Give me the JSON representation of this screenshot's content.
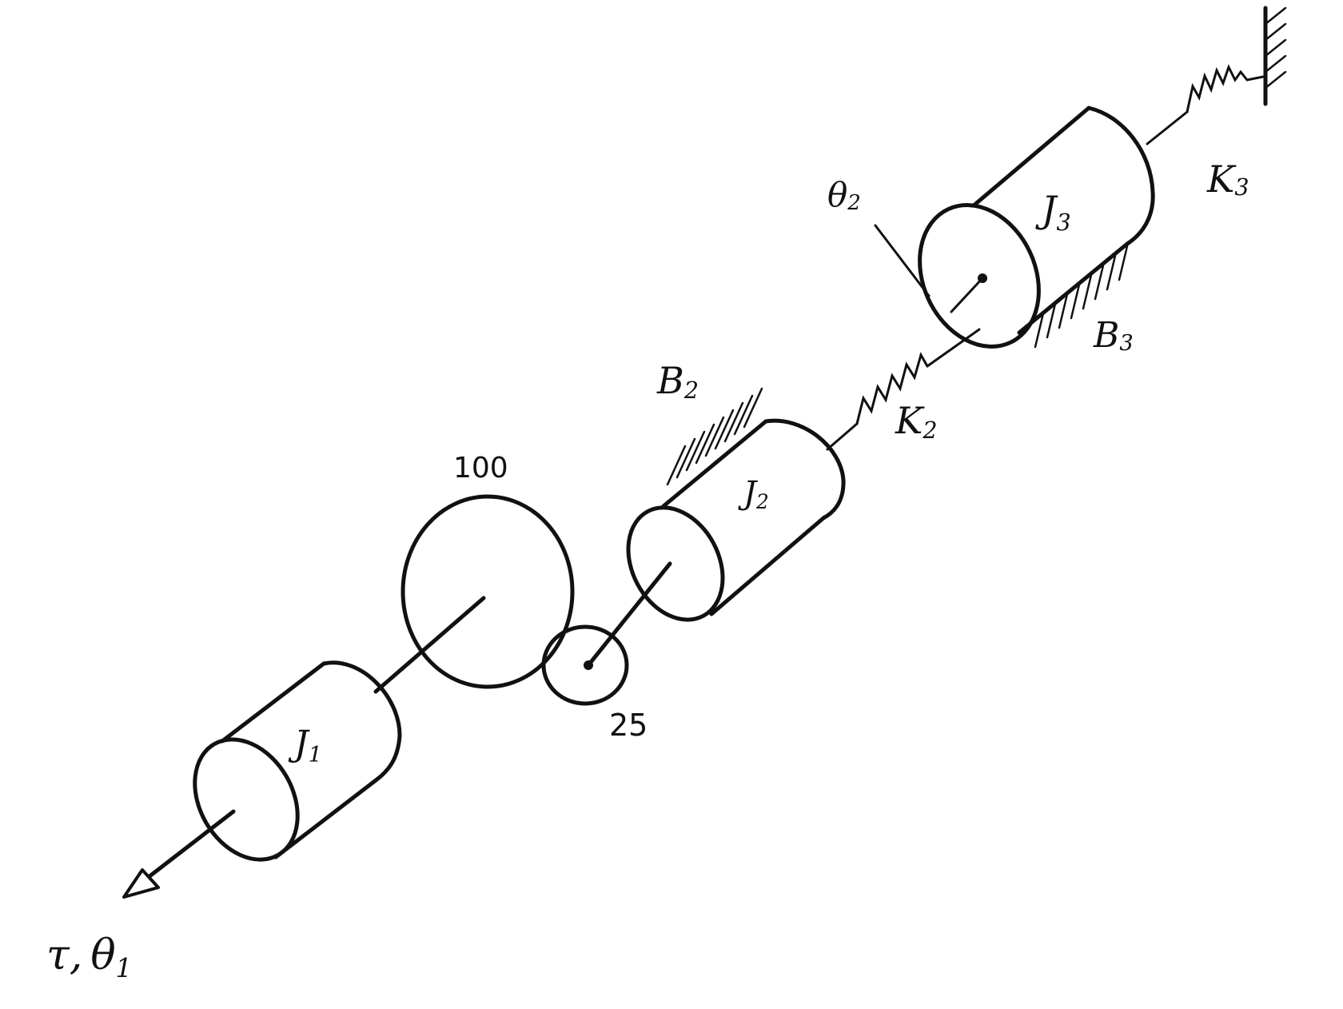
{
  "diagram": {
    "inertias": {
      "j1": "J",
      "j1_sub": "1",
      "j2": "J",
      "j2_sub": "2",
      "j3": "J",
      "j3_sub": "3"
    },
    "gears": {
      "large_teeth": "100",
      "small_teeth": "25"
    },
    "springs": {
      "k2": "K",
      "k2_sub": "2",
      "k3": "K",
      "k3_sub": "3"
    },
    "dampers": {
      "b2": "B",
      "b2_sub": "2",
      "b3": "B",
      "b3_sub": "3"
    },
    "input": {
      "torque": "τ",
      "separator": ",",
      "theta": "θ",
      "theta_sub": "1"
    },
    "theta2": {
      "symbol": "θ",
      "sub": "2"
    }
  },
  "colors": {
    "ink": "#111111",
    "paper": "#ffffff"
  }
}
